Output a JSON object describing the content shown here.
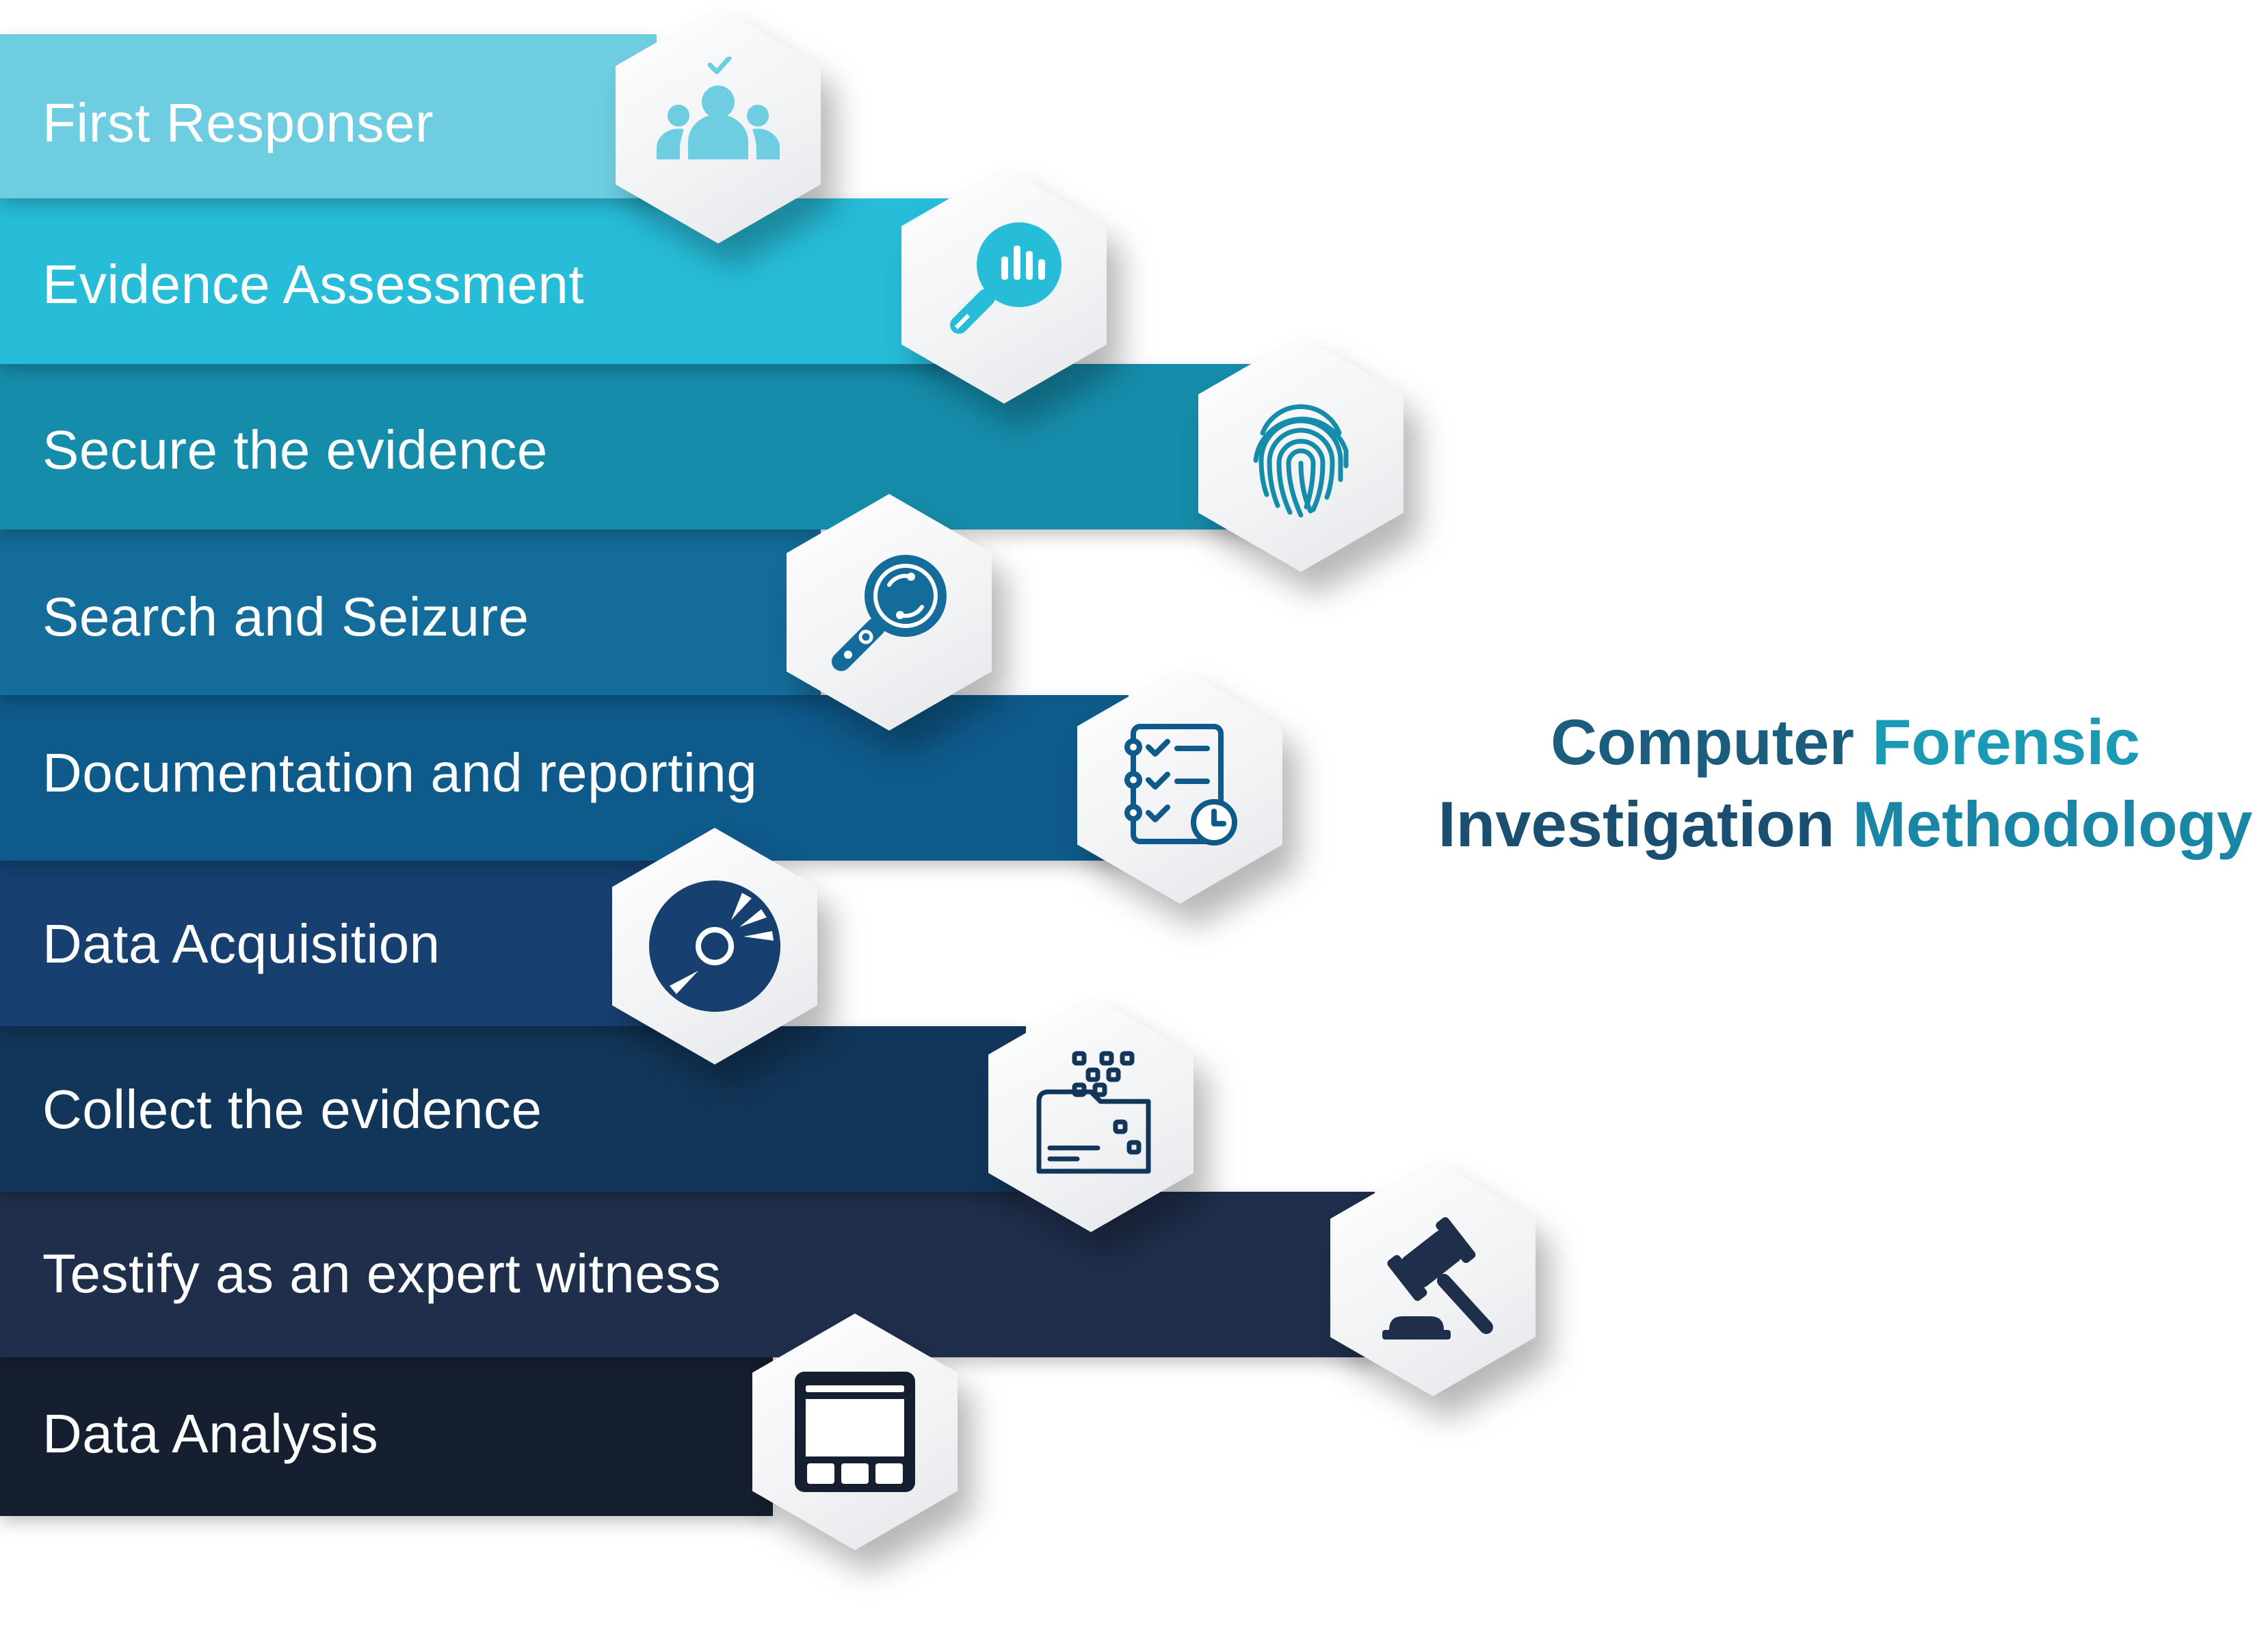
{
  "title": {
    "line1_part1": "Computer",
    "line1_part2": "Forensic",
    "line2_part1": "Investigation",
    "line2_part2": "Methodology"
  },
  "steps": [
    {
      "label": "First Responser",
      "icon": "team-check-icon",
      "color": "#6ecde1"
    },
    {
      "label": "Evidence Assessment",
      "icon": "magnifier-chart-icon",
      "color": "#27bcd8"
    },
    {
      "label": "Secure the evidence",
      "icon": "fingerprint-icon",
      "color": "#168cab"
    },
    {
      "label": "Search and Seizure",
      "icon": "search-magnifier-icon",
      "color": "#136c99"
    },
    {
      "label": "Documentation and reporting",
      "icon": "checklist-clock-icon",
      "color": "#0e5a8b"
    },
    {
      "label": "Data Acquisition",
      "icon": "disc-icon",
      "color": "#173f70"
    },
    {
      "label": "Collect the evidence",
      "icon": "folder-data-icon",
      "color": "#123659"
    },
    {
      "label": "Testify as an expert witness",
      "icon": "gavel-icon",
      "color": "#1f2e4b"
    },
    {
      "label": "Data Analysis",
      "icon": "window-layout-icon",
      "color": "#161f30"
    }
  ],
  "colors": {
    "title_dark": "#1a5d7c",
    "title_accent": "#1a9ab5",
    "icon_light": "#6ecde1",
    "icon_cyan": "#27bcd8",
    "icon_teal": "#168cab",
    "icon_blue": "#136c99",
    "icon_navy": "#173f70",
    "icon_dark": "#1f2e4b"
  }
}
